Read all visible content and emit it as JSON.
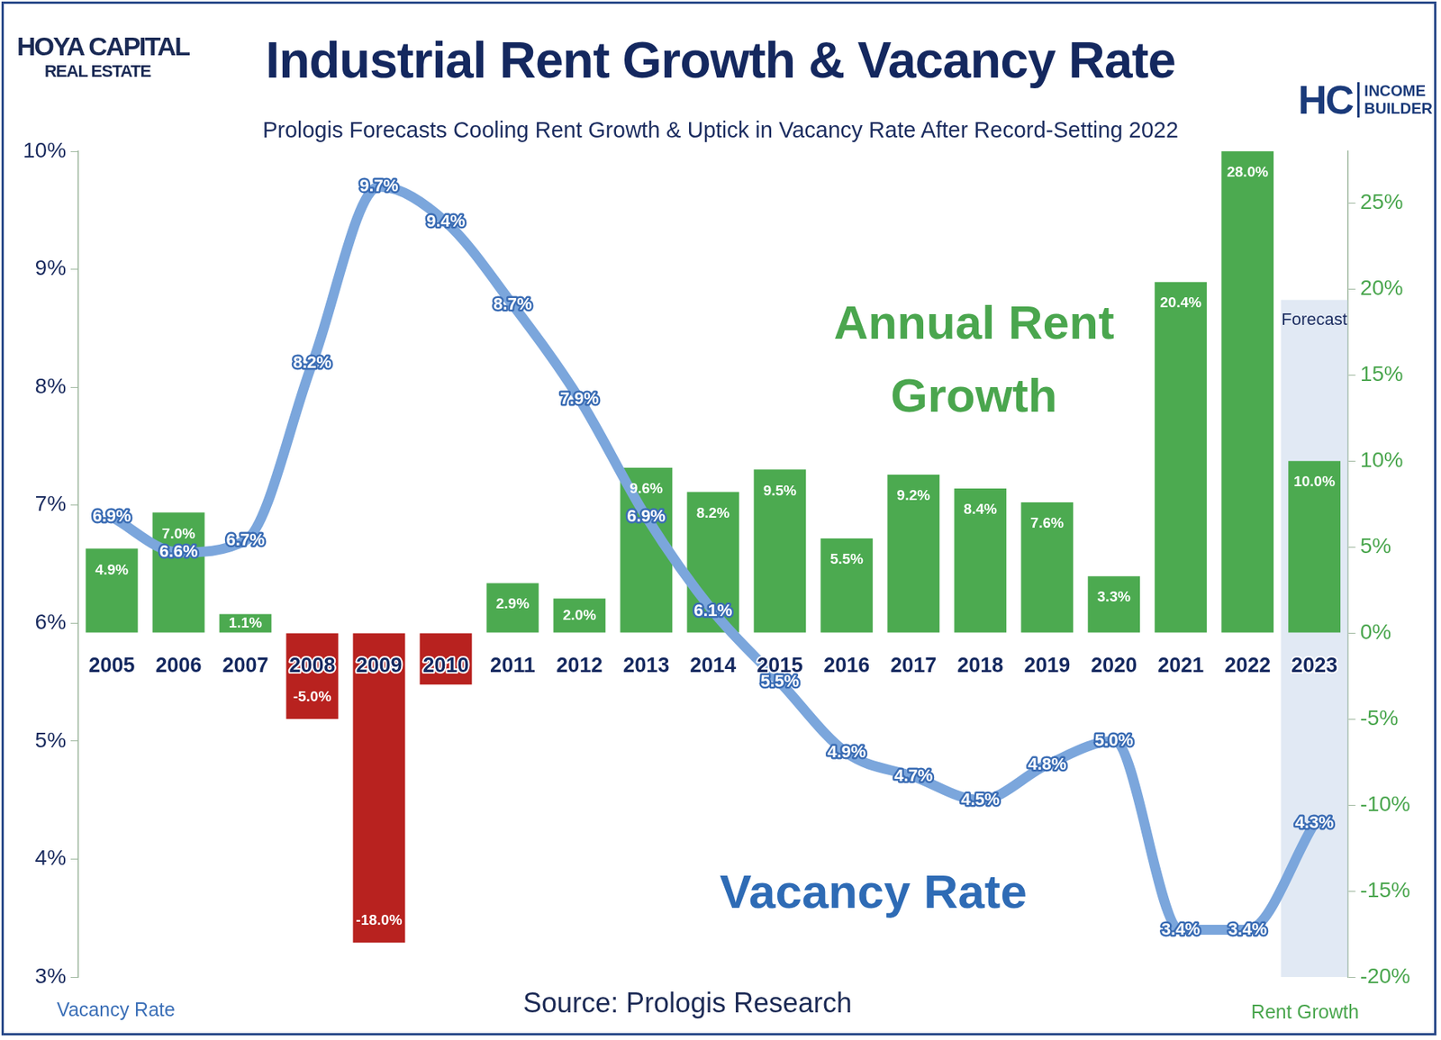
{
  "chart_data": {
    "type": "bar",
    "title": "Industrial Rent Growth & Vacancy Rate",
    "subtitle": "Prologis Forecasts Cooling Rent Growth & Uptick in Vacancy Rate After Record-Setting 2022",
    "y_label": "Vacancy Rate",
    "y2_label": "Rent Growth",
    "source": "Source: Prologis Research",
    "logos": {
      "left": [
        "HOYA CAPITAL",
        "REAL ESTATE"
      ],
      "right": [
        "HC",
        "INCOME BUILDER"
      ]
    },
    "forecast_label": "Forecast",
    "forecast_categories": [
      "2023"
    ],
    "categories": [
      "2005",
      "2006",
      "2007",
      "2008",
      "2009",
      "2010",
      "2011",
      "2012",
      "2013",
      "2014",
      "2015",
      "2016",
      "2017",
      "2018",
      "2019",
      "2020",
      "2021",
      "2022",
      "2023"
    ],
    "series": [
      {
        "name": "Annual Rent Growth",
        "type": "bar",
        "axis": "y2",
        "colors": [
          "#4caa50",
          "#4caa50",
          "#4caa50",
          "#b8221f",
          "#b8221f",
          "#b8221f",
          "#4caa50",
          "#4caa50",
          "#4caa50",
          "#4caa50",
          "#4caa50",
          "#4caa50",
          "#4caa50",
          "#4caa50",
          "#4caa50",
          "#4caa50",
          "#4caa50",
          "#4caa50",
          "#4caa50"
        ],
        "values": [
          4.9,
          7.0,
          1.1,
          -5.0,
          -18.0,
          -3.0,
          2.9,
          2.0,
          9.6,
          8.2,
          9.5,
          5.5,
          9.2,
          8.4,
          7.6,
          3.3,
          20.4,
          28.0,
          10.0
        ],
        "value_labels": [
          "4.9%",
          "7.0%",
          "1.1%",
          "-5.0%",
          "-18.0%",
          null,
          "2.9%",
          "2.0%",
          "9.6%",
          "8.2%",
          "9.5%",
          "5.5%",
          "9.2%",
          "8.4%",
          "7.6%",
          "3.3%",
          "20.4%",
          "28.0%",
          "10.0%"
        ]
      },
      {
        "name": "Vacancy Rate",
        "type": "line",
        "color": "#7ba6dc",
        "values": [
          6.9,
          6.6,
          6.7,
          8.2,
          9.7,
          9.4,
          8.7,
          7.9,
          6.9,
          6.1,
          5.5,
          4.9,
          4.7,
          4.5,
          4.8,
          5.0,
          3.4,
          3.4,
          4.3
        ],
        "value_labels": [
          "6.9%",
          "6.6%",
          "6.7%",
          "8.2%",
          "9.7%",
          "9.4%",
          "8.7%",
          "7.9%",
          "6.9%",
          "6.1%",
          "5.5%",
          "4.9%",
          "4.7%",
          "4.5%",
          "4.8%",
          "5.0%",
          "3.4%",
          "3.4%",
          "4.3%"
        ]
      }
    ],
    "ylim": [
      3,
      10
    ],
    "yticks": [
      {
        "value": 3,
        "label": "3%"
      },
      {
        "value": 4,
        "label": "4%"
      },
      {
        "value": 5,
        "label": "5%"
      },
      {
        "value": 6,
        "label": "6%"
      },
      {
        "value": 7,
        "label": "7%"
      },
      {
        "value": 8,
        "label": "8%"
      },
      {
        "value": 9,
        "label": "9%"
      },
      {
        "value": 10,
        "label": "10%"
      }
    ],
    "y2lim": [
      -20,
      28
    ],
    "y2ticks": [
      {
        "value": -20,
        "label": "-20%"
      },
      {
        "value": -15,
        "label": "-15%"
      },
      {
        "value": -10,
        "label": "-10%"
      },
      {
        "value": -5,
        "label": "-5%"
      },
      {
        "value": 0,
        "label": "0%"
      },
      {
        "value": 5,
        "label": "5%"
      },
      {
        "value": 10,
        "label": "10%"
      },
      {
        "value": 15,
        "label": "15%"
      },
      {
        "value": 20,
        "label": "20%"
      },
      {
        "value": 25,
        "label": "25%"
      }
    ],
    "grid": false,
    "legend": false,
    "data_labels": true
  }
}
